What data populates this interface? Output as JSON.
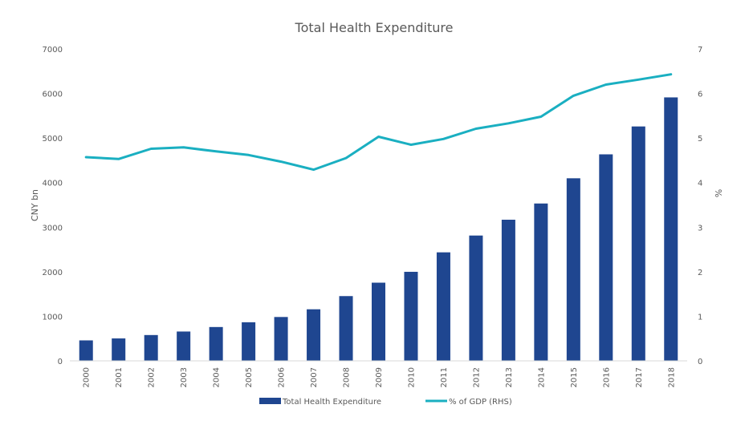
{
  "chart_data": {
    "type": "bar",
    "title": "Total Health Expenditure",
    "categories": [
      "2000",
      "2001",
      "2002",
      "2003",
      "2004",
      "2005",
      "2006",
      "2007",
      "2008",
      "2009",
      "2010",
      "2011",
      "2012",
      "2013",
      "2014",
      "2015",
      "2016",
      "2017",
      "2018"
    ],
    "series": [
      {
        "name": "Total Health Expenditure",
        "type": "bar",
        "axis": "left",
        "color": "#1F4690",
        "values": [
          459,
          503,
          579,
          658,
          759,
          866,
          984,
          1157,
          1453,
          1754,
          1998,
          2435,
          2812,
          3167,
          3531,
          4097,
          4634,
          5260,
          5912
        ]
      },
      {
        "name": "% of GDP (RHS)",
        "type": "line",
        "axis": "right",
        "color": "#1AAFC1",
        "values": [
          4.57,
          4.53,
          4.76,
          4.79,
          4.7,
          4.62,
          4.47,
          4.29,
          4.55,
          5.03,
          4.85,
          4.98,
          5.21,
          5.33,
          5.48,
          5.95,
          6.2,
          6.31,
          6.43
        ]
      }
    ],
    "ylabel": "CNY bn",
    "ylim": [
      0,
      7000
    ],
    "yticks": [
      "0",
      "1000",
      "2000",
      "3000",
      "4000",
      "5000",
      "6000",
      "7000"
    ],
    "y2label": "%",
    "y2lim": [
      0,
      7
    ],
    "y2ticks": [
      "0",
      "1",
      "2",
      "3",
      "4",
      "5",
      "6",
      "7"
    ],
    "legend": "bottom",
    "grid": false
  }
}
